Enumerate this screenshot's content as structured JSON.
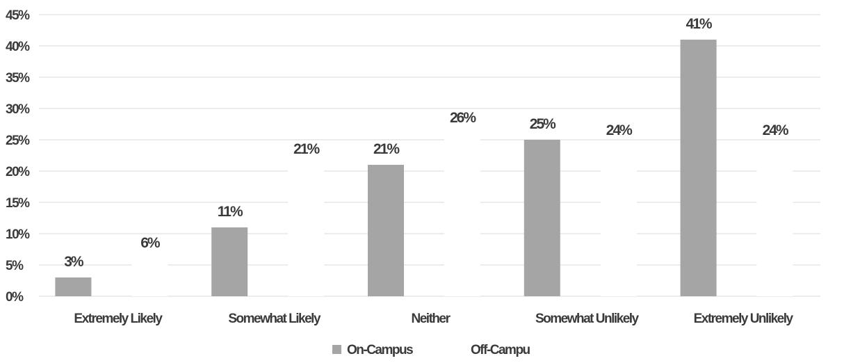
{
  "chart_data": {
    "type": "bar",
    "categories": [
      "Extremely Likely",
      "Somewhat Likely",
      "Neither",
      "Somewhat Unlikely",
      "Extremely Unlikely"
    ],
    "series": [
      {
        "name": "On-Campus",
        "values": [
          3,
          11,
          21,
          25,
          41
        ],
        "labels": [
          "3%",
          "11%",
          "21%",
          "25%",
          "41%"
        ],
        "color": "#a5a5a5"
      },
      {
        "name": "Off-Campu",
        "values": [
          6,
          21,
          26,
          24,
          24
        ],
        "labels": [
          "6%",
          "21%",
          "26%",
          "24%",
          "24%"
        ],
        "color": "#ffffff"
      }
    ],
    "yticks": [
      "0%",
      "5%",
      "10%",
      "15%",
      "20%",
      "25%",
      "30%",
      "35%",
      "40%",
      "45%"
    ],
    "ylim": [
      0,
      45
    ],
    "grid": true,
    "legend": "bottom",
    "gridColor": "#d9d9d9",
    "textColor": "#3a3a3a"
  }
}
